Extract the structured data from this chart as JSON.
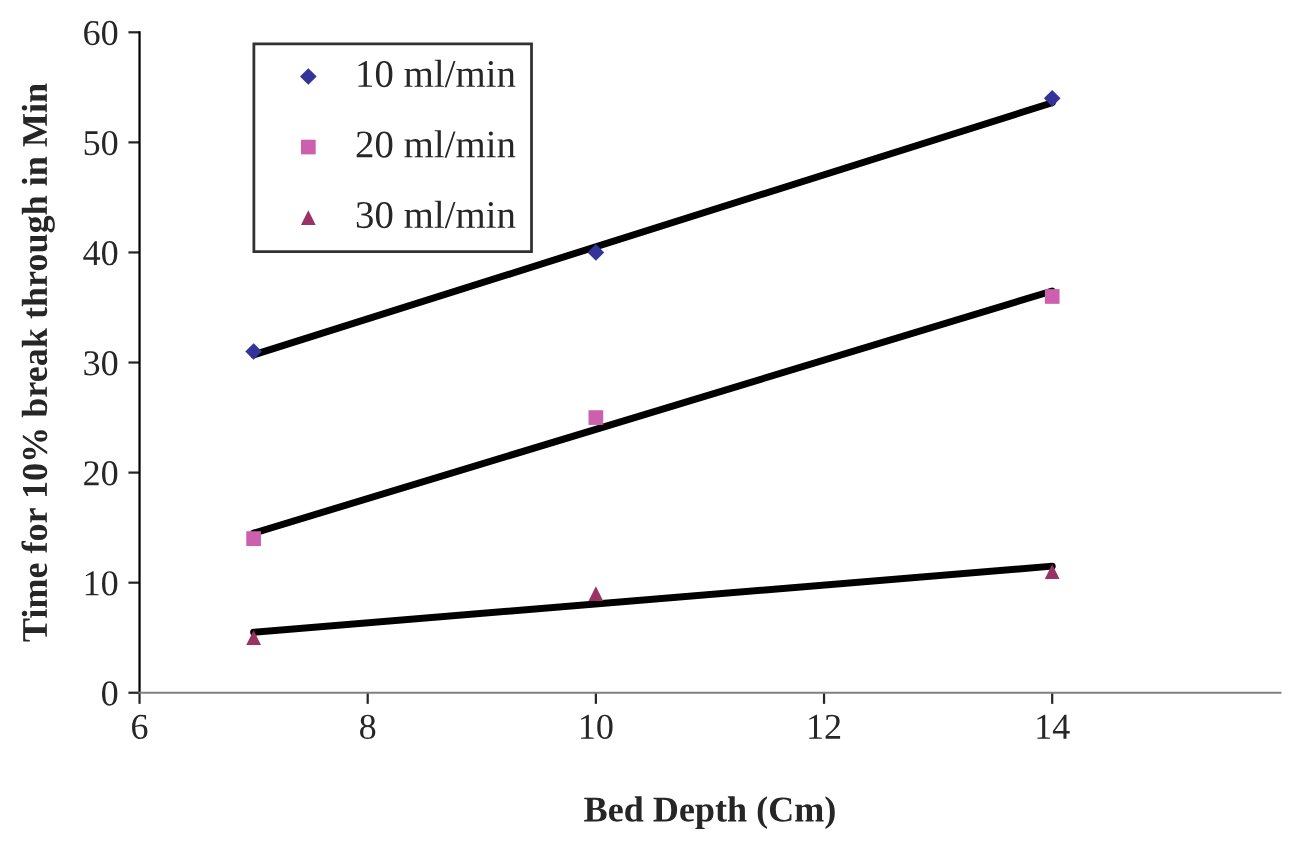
{
  "chart_data": {
    "type": "scatter",
    "xlabel": "Bed Depth (Cm)",
    "ylabel": "Time for 10% break through in Min",
    "xlim": [
      6,
      16
    ],
    "xticks": [
      6,
      8,
      10,
      12,
      14
    ],
    "ylim": [
      0,
      60
    ],
    "yticks": [
      0,
      10,
      20,
      30,
      40,
      50,
      60
    ],
    "grid": false,
    "legend": "top left",
    "series": [
      {
        "name": "10 ml/min",
        "color": "#333399",
        "marker": "diamond",
        "x": [
          7,
          10,
          14
        ],
        "values": [
          31,
          40,
          54
        ]
      },
      {
        "name": "20 ml/min",
        "color": "#cc5fae",
        "marker": "square",
        "x": [
          7,
          10,
          14
        ],
        "values": [
          14,
          25,
          36
        ]
      },
      {
        "name": "30 ml/min",
        "color": "#993366",
        "marker": "triangle",
        "x": [
          7,
          10,
          14
        ],
        "values": [
          5,
          9,
          11
        ]
      },
      {
        "type": "line",
        "color": "#000000",
        "marker": "none",
        "line_style": "solid",
        "x": [
          7,
          14
        ],
        "values": [
          30.7,
          53.6
        ]
      },
      {
        "type": "line",
        "color": "#000000",
        "marker": "none",
        "line_style": "solid",
        "x": [
          7,
          14
        ],
        "values": [
          14.5,
          36.5
        ]
      },
      {
        "type": "line",
        "color": "#000000",
        "marker": "none",
        "line_style": "solid",
        "x": [
          7,
          14
        ],
        "values": [
          5.5,
          11.5
        ]
      }
    ]
  }
}
